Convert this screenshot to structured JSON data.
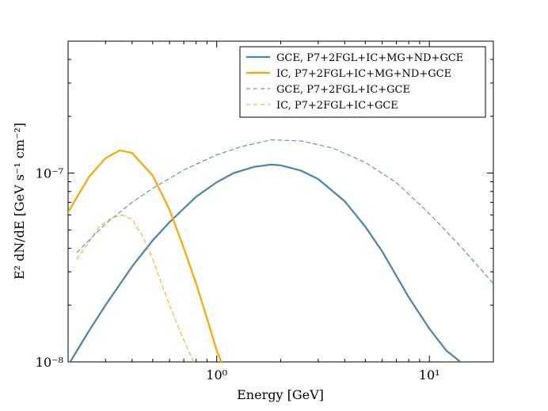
{
  "chart_data": {
    "type": "line",
    "xscale": "log",
    "yscale": "log",
    "xlabel": "Energy [GeV]",
    "ylabel": "E² dN/dE [GeV s⁻¹ cm⁻²]",
    "xlim": [
      0.2,
      20
    ],
    "ylim": [
      1e-08,
      5e-07
    ],
    "x_ticks": [
      {
        "value": 1,
        "label": "10⁰"
      },
      {
        "value": 10,
        "label": "10¹"
      }
    ],
    "y_ticks": [
      {
        "value": 1e-08,
        "label": "10⁻⁸"
      },
      {
        "value": 1e-07,
        "label": "10⁻⁷"
      }
    ],
    "legend_position": "top-right",
    "series": [
      {
        "name": "GCE, P7+2FGL+IC+MG+ND+GCE",
        "color": "#4682b4",
        "style": "solid",
        "x": [
          0.2,
          0.25,
          0.3,
          0.4,
          0.5,
          0.6,
          0.8,
          1.0,
          1.2,
          1.5,
          1.8,
          2.0,
          2.5,
          3.0,
          4.0,
          5.0,
          6.0,
          8.0,
          10.0,
          12.0,
          14.0
        ],
        "y": [
          9.6e-09,
          1.45e-08,
          2e-08,
          3.2e-08,
          4.4e-08,
          5.5e-08,
          7.5e-08,
          8.95e-08,
          1e-07,
          1.08e-07,
          1.11e-07,
          1.1e-07,
          1.03e-07,
          9.3e-08,
          7.1e-08,
          5.2e-08,
          3.85e-08,
          2.2e-08,
          1.5e-08,
          1.15e-08,
          1e-08
        ]
      },
      {
        "name": "IC, P7+2FGL+IC+MG+ND+GCE",
        "color": "#ffa500",
        "style": "solid",
        "x": [
          0.2,
          0.25,
          0.3,
          0.35,
          0.4,
          0.5,
          0.6,
          0.7,
          0.8,
          0.9,
          1.0,
          1.05
        ],
        "y": [
          6.2e-08,
          9.5e-08,
          1.2e-07,
          1.32e-07,
          1.28e-07,
          9.7e-08,
          6.4e-08,
          4e-08,
          2.6e-08,
          1.7e-08,
          1.15e-08,
          1e-08
        ]
      },
      {
        "name": "GCE, P7+2FGL+IC+GCE",
        "color": "#4682b4",
        "style": "dashed",
        "x": [
          0.22,
          0.3,
          0.4,
          0.5,
          0.7,
          1.0,
          1.3,
          1.8,
          2.5,
          3.5,
          5.0,
          7.0,
          10.0,
          14.0,
          20.0
        ],
        "y": [
          3.8e-08,
          5.4e-08,
          7e-08,
          8.3e-08,
          1.04e-07,
          1.25e-07,
          1.38e-07,
          1.5e-07,
          1.48e-07,
          1.36e-07,
          1.14e-07,
          8.9e-08,
          6.1e-08,
          4.1e-08,
          2.6e-08
        ]
      },
      {
        "name": "IC, P7+2FGL+IC+GCE",
        "color": "#ffa500",
        "style": "dashed",
        "x": [
          0.22,
          0.25,
          0.28,
          0.32,
          0.36,
          0.4,
          0.45,
          0.5,
          0.55,
          0.6,
          0.65,
          0.7,
          0.75,
          0.78
        ],
        "y": [
          3.5e-08,
          4.3e-08,
          5.2e-08,
          5.8e-08,
          6e-08,
          5.7e-08,
          4.6e-08,
          3.5e-08,
          2.6e-08,
          2e-08,
          1.6e-08,
          1.3e-08,
          1.1e-08,
          1e-08
        ]
      }
    ]
  }
}
